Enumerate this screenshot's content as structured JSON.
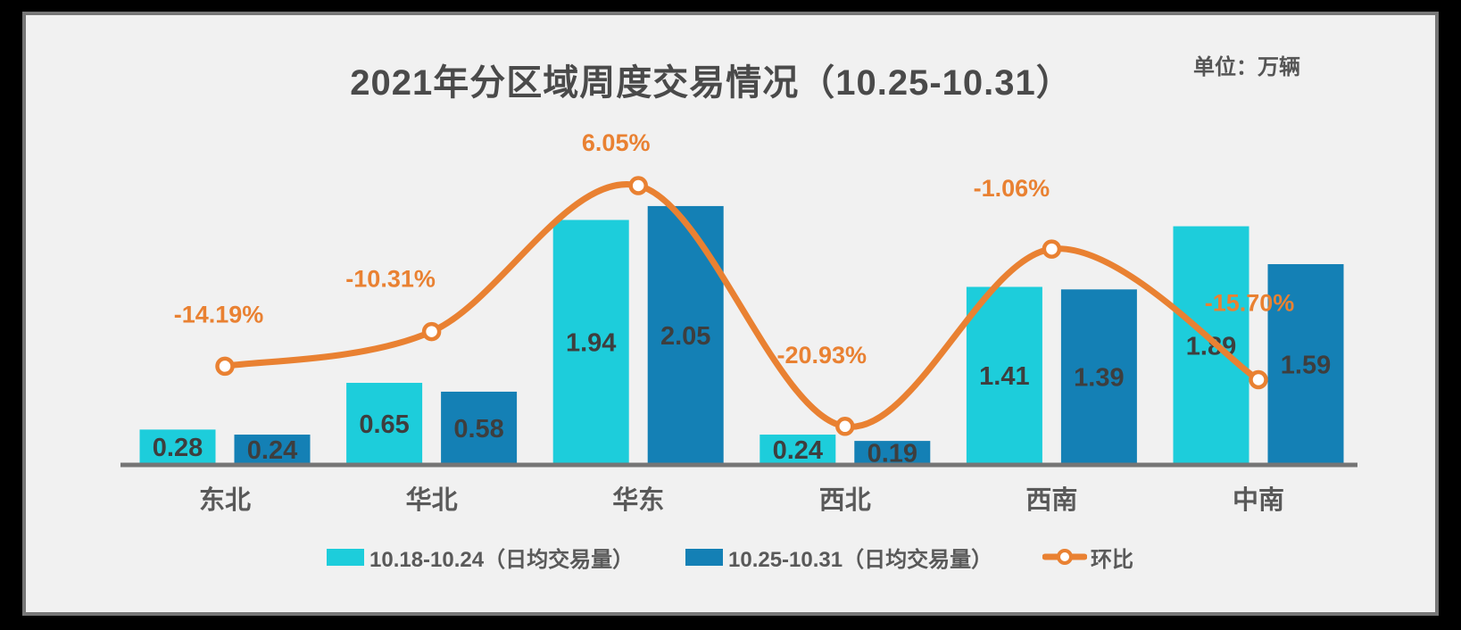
{
  "header": {
    "title": "2021年分区域周度交易情况（10.25-10.31）",
    "unit_label": "单位：万辆"
  },
  "chart_data": {
    "type": "bar+line",
    "title": "2021年分区域周度交易情况（10.25-10.31）",
    "unit_label": "单位：万辆",
    "categories": [
      "东北",
      "华北",
      "华东",
      "西北",
      "西南",
      "中南"
    ],
    "series": [
      {
        "name": "10.18-10.24（日均交易量）",
        "type": "bar",
        "color": "#1DCDDB",
        "values": [
          0.28,
          0.65,
          1.94,
          0.24,
          1.41,
          1.89
        ],
        "value_labels": [
          "0.28",
          "0.65",
          "1.94",
          "0.24",
          "1.41",
          "1.89"
        ]
      },
      {
        "name": "10.25-10.31（日均交易量）",
        "type": "bar",
        "color": "#1480B5",
        "values": [
          0.24,
          0.58,
          2.05,
          0.19,
          1.39,
          1.59
        ],
        "value_labels": [
          "0.24",
          "0.58",
          "2.05",
          "0.19",
          "1.39",
          "1.59"
        ]
      },
      {
        "name": "环比",
        "type": "line",
        "color": "#E98132",
        "marker_fill": "#FFFFFF",
        "values": [
          -14.19,
          -10.31,
          6.05,
          -20.93,
          -1.06,
          -15.7
        ],
        "point_labels": [
          "-14.19%",
          "-10.31%",
          "6.05%",
          "-20.93%",
          "-1.06%",
          "-15.70%"
        ]
      }
    ],
    "ylim_bar": [
      0,
      2.6
    ],
    "grid": false,
    "legend_position": "bottom",
    "axis_line_color": "#757575",
    "value_label_color": "#3E3E3E",
    "category_label_color": "#595959"
  }
}
